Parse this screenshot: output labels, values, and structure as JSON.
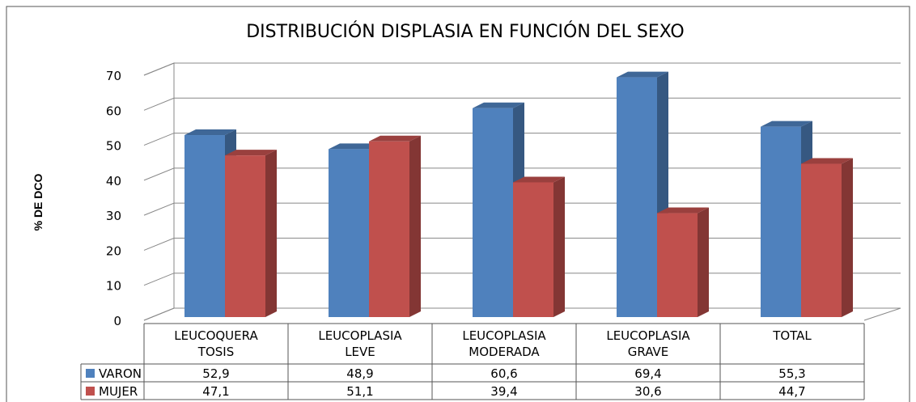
{
  "chart_data": {
    "type": "bar3d",
    "title": "DISTRIBUCIÓN  DISPLASIA EN FUNCIÓN DEL SEXO",
    "y_label": "% DE DCO",
    "categories": [
      [
        "LEUCOQUERA",
        "TOSIS"
      ],
      [
        "LEUCOPLASIA",
        "LEVE"
      ],
      [
        "LEUCOPLASIA",
        "MODERADA"
      ],
      [
        "LEUCOPLASIA",
        "GRAVE"
      ],
      [
        "TOTAL"
      ]
    ],
    "series": [
      {
        "name": "VARON",
        "color": "#4f81bd",
        "values": [
          52.9,
          48.9,
          60.6,
          69.4,
          55.3
        ],
        "value_labels": [
          "52,9",
          "48,9",
          "60,6",
          "69,4",
          "55,3"
        ]
      },
      {
        "name": "MUJER",
        "color": "#c0504d",
        "values": [
          47.1,
          51.1,
          39.4,
          30.6,
          44.7
        ],
        "value_labels": [
          "47,1",
          "51,1",
          "39,4",
          "30,6",
          "44,7"
        ]
      }
    ],
    "ylim": [
      0,
      70
    ],
    "yticks": [
      0,
      10,
      20,
      30,
      40,
      50,
      60,
      70
    ],
    "grid": true
  }
}
